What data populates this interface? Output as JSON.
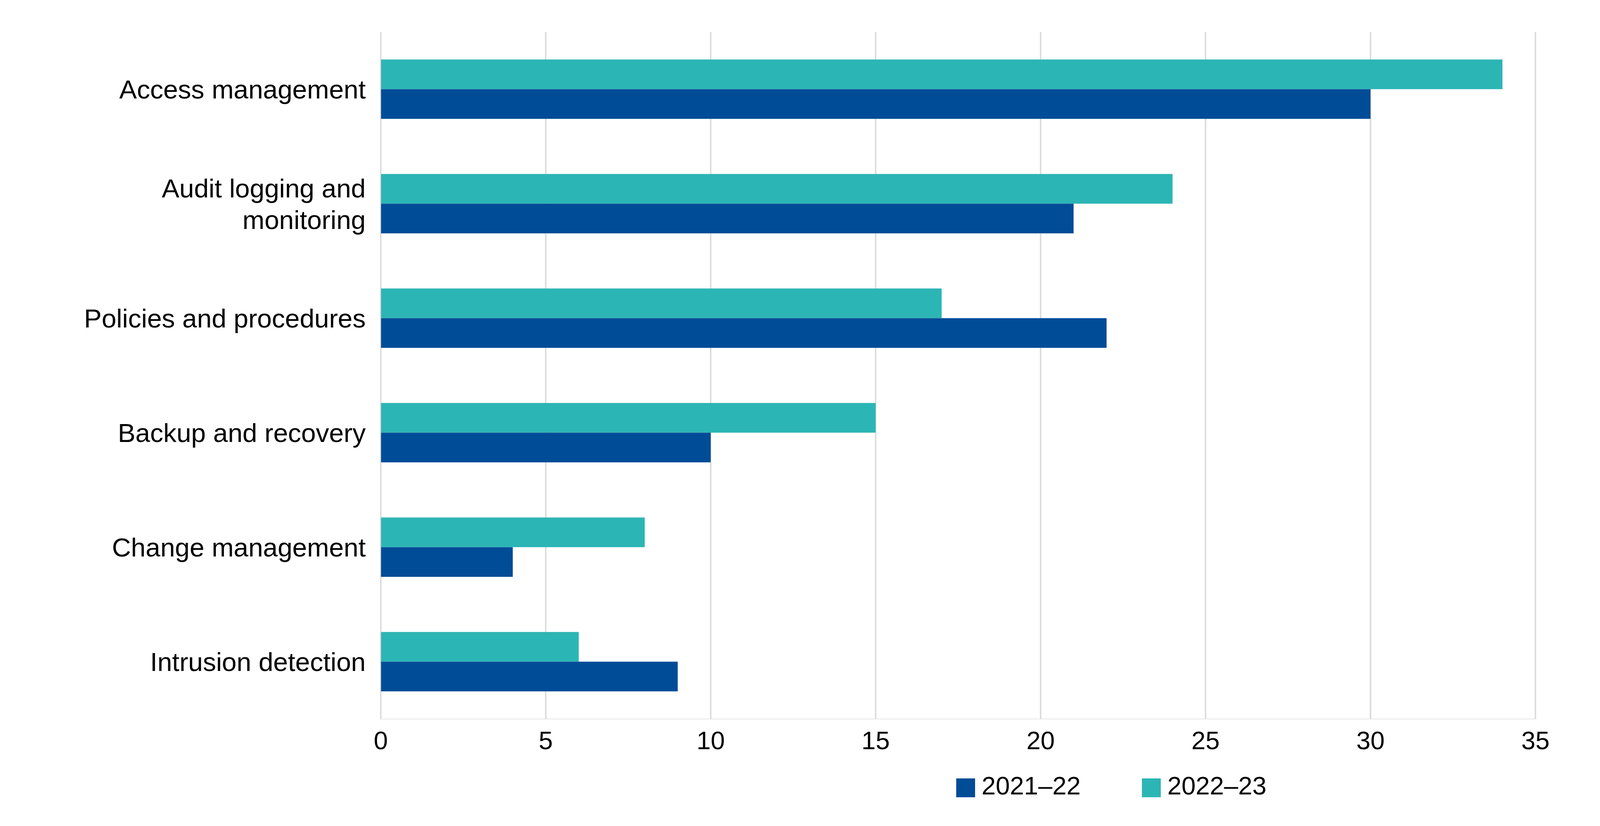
{
  "chart_data": {
    "type": "bar",
    "orientation": "horizontal",
    "categories": [
      "Access management",
      "Audit logging and monitoring",
      "Policies and procedures",
      "Backup and recovery",
      "Change management",
      "Intrusion detection"
    ],
    "series": [
      {
        "name": "2022–23",
        "color": "#2cb5b5",
        "values": [
          34,
          24,
          17,
          15,
          8,
          6
        ]
      },
      {
        "name": "2021–22",
        "color": "#004c97",
        "values": [
          30,
          21,
          22,
          10,
          4,
          9
        ]
      }
    ],
    "xlim": [
      0,
      35
    ],
    "xticks": [
      0,
      5,
      10,
      15,
      20,
      25,
      30,
      35
    ],
    "grid": true,
    "legend": "bottom"
  }
}
